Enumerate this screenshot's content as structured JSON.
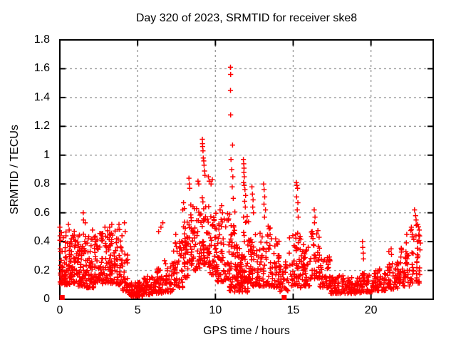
{
  "chart_data": {
    "type": "scatter",
    "title": "Day 320 of 2023, SRMTID for receiver ske8",
    "xlabel": "GPS time / hours",
    "ylabel": "SRMTID / TECUs",
    "xlim": [
      0,
      24
    ],
    "ylim": [
      0,
      1.8
    ],
    "grid": true,
    "legend": "none",
    "marker": "plus",
    "colors": {
      "marker": "#ff0000",
      "grid": "#9e9e9e",
      "border": "#000000",
      "background": "#ffffff"
    },
    "x_ticks": [
      {
        "v": 0,
        "label": "0"
      },
      {
        "v": 5,
        "label": "5"
      },
      {
        "v": 10,
        "label": "10"
      },
      {
        "v": 15,
        "label": "15"
      },
      {
        "v": 20,
        "label": "20"
      }
    ],
    "y_ticks": [
      {
        "v": 0.0,
        "label": "0"
      },
      {
        "v": 0.2,
        "label": "0.2"
      },
      {
        "v": 0.4,
        "label": "0.4"
      },
      {
        "v": 0.6,
        "label": "0.6"
      },
      {
        "v": 0.8,
        "label": "0.8"
      },
      {
        "v": 1.0,
        "label": "1"
      },
      {
        "v": 1.2,
        "label": "1.2"
      },
      {
        "v": 1.4,
        "label": "1.4"
      },
      {
        "v": 1.6,
        "label": "1.6"
      },
      {
        "v": 1.8,
        "label": "1.8"
      }
    ],
    "max_point": {
      "x": 11.0,
      "y": 1.61
    },
    "square_points": [
      [
        0.15,
        0.012
      ],
      [
        14.42,
        0.012
      ]
    ],
    "spike_points": [
      [
        0.0,
        0.5
      ],
      [
        0.02,
        0.44
      ],
      [
        0.03,
        0.41
      ],
      [
        0.02,
        0.35
      ],
      [
        0.04,
        0.33
      ],
      [
        0.55,
        0.52
      ],
      [
        0.6,
        0.48
      ],
      [
        1.5,
        0.6
      ],
      [
        1.52,
        0.55
      ],
      [
        1.63,
        0.53
      ],
      [
        2.1,
        0.48
      ],
      [
        2.9,
        0.5
      ],
      [
        3.2,
        0.5
      ],
      [
        3.34,
        0.52
      ],
      [
        3.8,
        0.52
      ],
      [
        4.15,
        0.53
      ],
      [
        4.2,
        0.47
      ],
      [
        6.35,
        0.47
      ],
      [
        6.5,
        0.5
      ],
      [
        6.62,
        0.53
      ],
      [
        7.45,
        0.45
      ],
      [
        7.9,
        0.62
      ],
      [
        7.95,
        0.67
      ],
      [
        8.0,
        0.63
      ],
      [
        8.3,
        0.84
      ],
      [
        8.32,
        0.8
      ],
      [
        8.35,
        0.77
      ],
      [
        8.88,
        0.82
      ],
      [
        8.93,
        0.8
      ],
      [
        9.16,
        1.11
      ],
      [
        9.17,
        1.08
      ],
      [
        9.18,
        1.06
      ],
      [
        9.2,
        1.03
      ],
      [
        9.22,
        0.98
      ],
      [
        9.25,
        0.96
      ],
      [
        9.27,
        0.93
      ],
      [
        9.3,
        0.89
      ],
      [
        9.33,
        0.86
      ],
      [
        9.55,
        0.85
      ],
      [
        9.6,
        0.82
      ],
      [
        9.72,
        0.8
      ],
      [
        9.8,
        0.83
      ],
      [
        10.3,
        0.62
      ],
      [
        10.4,
        0.65
      ],
      [
        10.45,
        0.6
      ],
      [
        10.97,
        1.61
      ],
      [
        10.98,
        1.56
      ],
      [
        10.97,
        1.45
      ],
      [
        10.98,
        1.28
      ],
      [
        11.1,
        1.07
      ],
      [
        11.0,
        0.97
      ],
      [
        11.05,
        0.9
      ],
      [
        11.12,
        0.85
      ],
      [
        11.08,
        0.78
      ],
      [
        11.15,
        0.7
      ],
      [
        11.8,
        0.97
      ],
      [
        11.82,
        0.94
      ],
      [
        11.84,
        0.91
      ],
      [
        11.83,
        0.88
      ],
      [
        11.86,
        0.85
      ],
      [
        11.81,
        0.81
      ],
      [
        11.85,
        0.79
      ],
      [
        11.9,
        0.76
      ],
      [
        11.94,
        0.72
      ],
      [
        11.88,
        0.68
      ],
      [
        11.92,
        0.64
      ],
      [
        12.35,
        0.78
      ],
      [
        12.38,
        0.73
      ],
      [
        12.42,
        0.69
      ],
      [
        12.4,
        0.64
      ],
      [
        12.45,
        0.6
      ],
      [
        13.1,
        0.8
      ],
      [
        13.13,
        0.76
      ],
      [
        13.17,
        0.71
      ],
      [
        13.12,
        0.66
      ],
      [
        13.22,
        0.62
      ],
      [
        13.16,
        0.57
      ],
      [
        15.2,
        0.81
      ],
      [
        15.24,
        0.79
      ],
      [
        15.28,
        0.77
      ],
      [
        15.22,
        0.71
      ],
      [
        15.3,
        0.67
      ],
      [
        15.26,
        0.62
      ],
      [
        15.32,
        0.57
      ],
      [
        16.35,
        0.62
      ],
      [
        16.4,
        0.57
      ],
      [
        16.37,
        0.53
      ],
      [
        19.45,
        0.4
      ],
      [
        19.47,
        0.36
      ],
      [
        19.5,
        0.32
      ],
      [
        19.52,
        0.28
      ],
      [
        21.15,
        0.33
      ],
      [
        21.3,
        0.35
      ],
      [
        21.32,
        0.31
      ],
      [
        22.3,
        0.45
      ],
      [
        22.6,
        0.5
      ],
      [
        22.8,
        0.62
      ],
      [
        22.87,
        0.58
      ],
      [
        22.9,
        0.55
      ],
      [
        23.0,
        0.52
      ],
      [
        23.1,
        0.48
      ]
    ],
    "density_bands": {
      "columns": [
        "x_start_hour",
        "x_end_hour",
        "y_min_TECU",
        "y_max_TECU",
        "n_points"
      ],
      "rows": [
        [
          0.0,
          0.5,
          0.1,
          0.48,
          55
        ],
        [
          0.5,
          1.0,
          0.1,
          0.5,
          55
        ],
        [
          1.0,
          1.6,
          0.09,
          0.46,
          60
        ],
        [
          1.6,
          2.2,
          0.08,
          0.44,
          58
        ],
        [
          2.2,
          2.8,
          0.1,
          0.46,
          58
        ],
        [
          2.8,
          3.4,
          0.11,
          0.48,
          58
        ],
        [
          3.4,
          4.0,
          0.1,
          0.5,
          55
        ],
        [
          4.0,
          4.4,
          0.05,
          0.33,
          25
        ],
        [
          4.4,
          5.4,
          0.02,
          0.12,
          75
        ],
        [
          5.4,
          6.1,
          0.03,
          0.16,
          48
        ],
        [
          6.1,
          6.7,
          0.04,
          0.22,
          42
        ],
        [
          6.7,
          7.3,
          0.05,
          0.28,
          42
        ],
        [
          7.3,
          7.9,
          0.08,
          0.42,
          44
        ],
        [
          7.9,
          8.4,
          0.15,
          0.6,
          42
        ],
        [
          8.4,
          9.0,
          0.2,
          0.66,
          50
        ],
        [
          9.0,
          9.6,
          0.24,
          0.72,
          50
        ],
        [
          9.6,
          10.1,
          0.17,
          0.62,
          45
        ],
        [
          10.1,
          10.7,
          0.12,
          0.58,
          45
        ],
        [
          10.7,
          11.3,
          0.14,
          0.64,
          48
        ],
        [
          10.9,
          12.1,
          0.05,
          0.16,
          45
        ],
        [
          11.3,
          11.8,
          0.09,
          0.38,
          45
        ],
        [
          11.8,
          12.3,
          0.11,
          0.6,
          45
        ],
        [
          12.3,
          12.9,
          0.09,
          0.48,
          45
        ],
        [
          12.9,
          13.6,
          0.09,
          0.52,
          48
        ],
        [
          13.6,
          14.1,
          0.08,
          0.42,
          40
        ],
        [
          14.1,
          14.7,
          0.05,
          0.26,
          32
        ],
        [
          14.7,
          15.5,
          0.08,
          0.48,
          52
        ],
        [
          15.5,
          16.1,
          0.09,
          0.38,
          45
        ],
        [
          16.1,
          16.7,
          0.14,
          0.48,
          42
        ],
        [
          16.7,
          17.4,
          0.08,
          0.3,
          45
        ],
        [
          17.4,
          18.4,
          0.04,
          0.17,
          60
        ],
        [
          18.4,
          19.4,
          0.04,
          0.15,
          60
        ],
        [
          19.4,
          20.2,
          0.05,
          0.19,
          48
        ],
        [
          20.2,
          21.0,
          0.06,
          0.22,
          48
        ],
        [
          21.0,
          21.8,
          0.07,
          0.27,
          48
        ],
        [
          21.8,
          22.5,
          0.09,
          0.4,
          46
        ],
        [
          22.5,
          23.2,
          0.11,
          0.52,
          46
        ]
      ]
    }
  }
}
